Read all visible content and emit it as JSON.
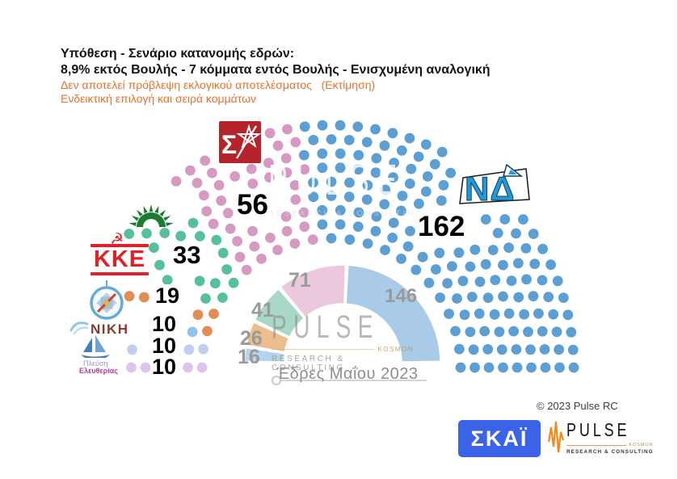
{
  "header": {
    "title_line1": "Υπόθεση - Σενάριο κατανομής εδρών:",
    "title_line2": "8,9% εκτός Βουλής - 7 κόμματα εντός Βουλής - Ενισχυμένη αναλογική",
    "note_line1": "Δεν αποτελεί πρόβλεψη εκλογικού αποτελέσματος   (Εκτίμηση)",
    "note_line2": "Ενδεικτική επιλογή και σειρά κομμάτων"
  },
  "chart_data": {
    "type": "parliament",
    "title": "Υπόθεση - Σενάριο κατανομής εδρών",
    "hemicycle": {
      "total_seats": 300,
      "note": "hypothetical allocation, parties ordered left to right",
      "parties": [
        {
          "name": "Πλεύση Ελευθερίας",
          "seats": 10,
          "color": "#dcc4ee",
          "logo_line1": "Πλεύση",
          "logo_line2": "Ελευθερίας"
        },
        {
          "name": "ΝΙΚΗ",
          "seats": 10,
          "color": "#c3cdf2"
        },
        {
          "name": "Ελληνική Λύση",
          "seats": 10,
          "color": "#92c1ec"
        },
        {
          "name": "ΚΚΕ",
          "seats": 19,
          "color": "#e28d55",
          "logo_symbol": "☭"
        },
        {
          "name": "ΠΑΣΟΚ",
          "seats": 33,
          "color": "#56c09b"
        },
        {
          "name": "ΣΥΡΙΖΑ",
          "seats": 56,
          "color": "#d69ac2",
          "logo_letter": "Σ"
        },
        {
          "name": "ΝΔ",
          "seats": 162,
          "color": "#5b9fd4"
        }
      ]
    },
    "inner": {
      "title": "Έδρες Μαΐου 2023",
      "total_seats": 300,
      "segments": [
        {
          "party": "Ελληνική Λύση",
          "seats": 16,
          "color": "#b4d4ee"
        },
        {
          "party": "ΚΚΕ",
          "seats": 26,
          "color": "#eebd8d"
        },
        {
          "party": "ΠΑΣΟΚ",
          "seats": 41,
          "color": "#a9d8c6"
        },
        {
          "party": "ΣΥΡΙΖΑ",
          "seats": 71,
          "color": "#ecc8dd"
        },
        {
          "party": "ΝΔ",
          "seats": 146,
          "color": "#a9cbe8"
        }
      ]
    }
  },
  "watermark": {
    "brand": "PULSE",
    "kosmon": "KOSMON",
    "sub": "RESEARCH & CONSULTING"
  },
  "footer": {
    "copyright": "© 2023 Pulse RC",
    "skai_label": "ΣΚΑΪ",
    "pulse_brand": "PULSE",
    "pulse_kosmon": "KOSMON",
    "pulse_sub": "RESEARCH & CONSULTING"
  }
}
